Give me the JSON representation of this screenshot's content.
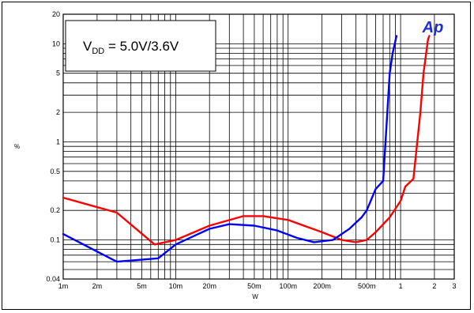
{
  "chart_data": {
    "type": "line",
    "annotation": {
      "main": "V",
      "sub": "DD",
      "rest": " = 5.0V/3.6V"
    },
    "logo": "Ap",
    "xlabel": "W",
    "ylabel": "%",
    "x_scale": "log",
    "y_scale": "log",
    "xlim": [
      0.001,
      3
    ],
    "ylim": [
      0.04,
      20
    ],
    "grid": true,
    "x_ticks": [
      {
        "v": 0.001,
        "label": "1m"
      },
      {
        "v": 0.002,
        "label": "2m"
      },
      {
        "v": 0.005,
        "label": "5m"
      },
      {
        "v": 0.01,
        "label": "10m"
      },
      {
        "v": 0.02,
        "label": "20m"
      },
      {
        "v": 0.05,
        "label": "50m"
      },
      {
        "v": 0.1,
        "label": "100m"
      },
      {
        "v": 0.2,
        "label": "200m"
      },
      {
        "v": 0.5,
        "label": "500m"
      },
      {
        "v": 1,
        "label": "1"
      },
      {
        "v": 2,
        "label": "2"
      },
      {
        "v": 3,
        "label": "3"
      }
    ],
    "y_ticks": [
      {
        "v": 0.04,
        "label": "0.04"
      },
      {
        "v": 0.1,
        "label": "0.1"
      },
      {
        "v": 0.2,
        "label": "0.2"
      },
      {
        "v": 0.5,
        "label": "0.5"
      },
      {
        "v": 1,
        "label": "1"
      },
      {
        "v": 2,
        "label": "2"
      },
      {
        "v": 5,
        "label": "5"
      },
      {
        "v": 10,
        "label": "10"
      },
      {
        "v": 20,
        "label": "20"
      }
    ],
    "series": [
      {
        "color": "#ff0000",
        "points": [
          [
            0.001,
            0.27
          ],
          [
            0.003,
            0.19
          ],
          [
            0.0065,
            0.09
          ],
          [
            0.01,
            0.1
          ],
          [
            0.02,
            0.14
          ],
          [
            0.04,
            0.175
          ],
          [
            0.06,
            0.175
          ],
          [
            0.1,
            0.16
          ],
          [
            0.2,
            0.12
          ],
          [
            0.3,
            0.1
          ],
          [
            0.4,
            0.095
          ],
          [
            0.5,
            0.1
          ],
          [
            0.6,
            0.12
          ],
          [
            0.8,
            0.17
          ],
          [
            1.0,
            0.25
          ],
          [
            1.1,
            0.35
          ],
          [
            1.3,
            0.42
          ],
          [
            1.5,
            2.0
          ],
          [
            1.6,
            5.0
          ],
          [
            1.75,
            11.0
          ],
          [
            1.8,
            12.0
          ]
        ]
      },
      {
        "color": "#0000ff",
        "points": [
          [
            0.001,
            0.115
          ],
          [
            0.003,
            0.06
          ],
          [
            0.007,
            0.065
          ],
          [
            0.01,
            0.09
          ],
          [
            0.02,
            0.13
          ],
          [
            0.03,
            0.145
          ],
          [
            0.05,
            0.14
          ],
          [
            0.08,
            0.125
          ],
          [
            0.12,
            0.105
          ],
          [
            0.17,
            0.095
          ],
          [
            0.25,
            0.1
          ],
          [
            0.35,
            0.13
          ],
          [
            0.45,
            0.17
          ],
          [
            0.5,
            0.2
          ],
          [
            0.55,
            0.26
          ],
          [
            0.6,
            0.33
          ],
          [
            0.7,
            0.4
          ],
          [
            0.8,
            5.0
          ],
          [
            0.85,
            8.0
          ],
          [
            0.92,
            12.0
          ]
        ]
      }
    ]
  }
}
